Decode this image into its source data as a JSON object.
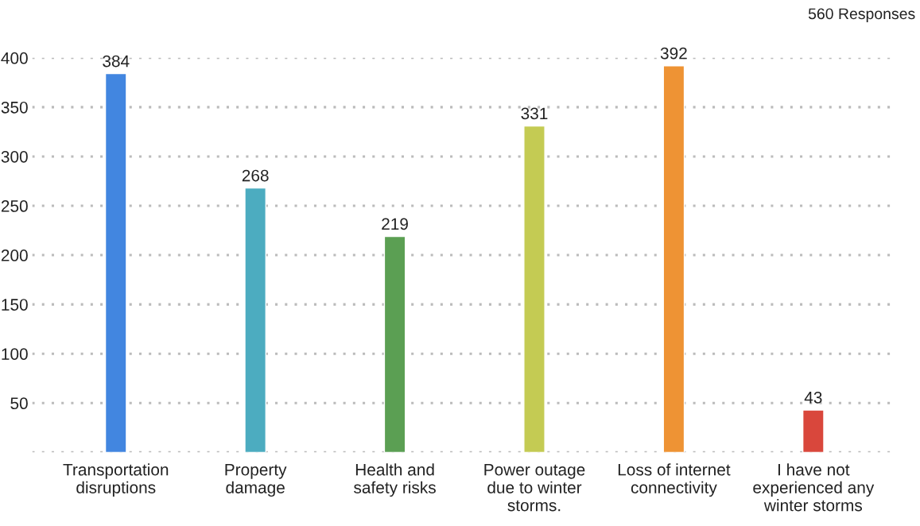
{
  "chart_data": {
    "type": "bar",
    "categories": [
      "Transportation\ndisruptions",
      "Property\ndamage",
      "Health and\nsafety risks",
      "Power outage\ndue to winter\nstorms.",
      "Loss of internet\nconnectivity",
      "I have not\nexperienced any\nwinter storms"
    ],
    "values": [
      384,
      268,
      219,
      331,
      392,
      43
    ],
    "colors": [
      "#4286e0",
      "#4cacc0",
      "#5b9f53",
      "#c4cb53",
      "#ee9334",
      "#d9473c"
    ],
    "data_labels": true,
    "ylim": [
      0,
      400
    ],
    "yticks": [
      {
        "value": 0,
        "label": null
      },
      50,
      100,
      150,
      200,
      250,
      300,
      350,
      400
    ],
    "grid": "y",
    "annotations": [
      "560 Responses"
    ]
  }
}
